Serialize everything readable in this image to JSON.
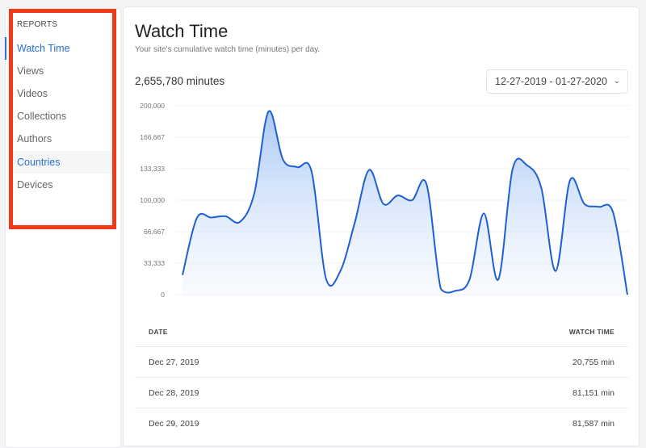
{
  "sidebar": {
    "heading": "REPORTS",
    "items": [
      {
        "label": "Watch Time",
        "state": "active"
      },
      {
        "label": "Views"
      },
      {
        "label": "Videos"
      },
      {
        "label": "Collections"
      },
      {
        "label": "Authors"
      },
      {
        "label": "Countries",
        "state": "hover"
      },
      {
        "label": "Devices"
      }
    ]
  },
  "main": {
    "title": "Watch Time",
    "subtitle": "Your site's cumulative watch time (minutes) per day.",
    "total": "2,655,780 minutes",
    "date_range": "12-27-2019 - 01-27-2020",
    "chevron_icon": "chevron-down-icon"
  },
  "chart_data": {
    "type": "area",
    "x_start": "2019-12-27",
    "x_end": "2020-01-27",
    "ylim": [
      0,
      200000
    ],
    "yticks": [
      "0",
      "33,333",
      "66,667",
      "100,000",
      "133,333",
      "166,667",
      "200,000"
    ],
    "values": [
      20755,
      81151,
      81587,
      83000,
      77000,
      107000,
      194000,
      143000,
      135000,
      130000,
      17000,
      25000,
      76000,
      132000,
      96000,
      105000,
      100000,
      117000,
      6000,
      4000,
      16000,
      86000,
      16000,
      133000,
      137000,
      113000,
      25000,
      121000,
      96000,
      93000,
      87000,
      0
    ],
    "color": "#1f5fd1",
    "grid": true
  },
  "table": {
    "headers": {
      "date": "DATE",
      "watch_time": "WATCH TIME"
    },
    "rows": [
      {
        "date": "Dec 27, 2019",
        "value": "20,755 min"
      },
      {
        "date": "Dec 28, 2019",
        "value": "81,151 min"
      },
      {
        "date": "Dec 29, 2019",
        "value": "81,587 min"
      }
    ]
  }
}
